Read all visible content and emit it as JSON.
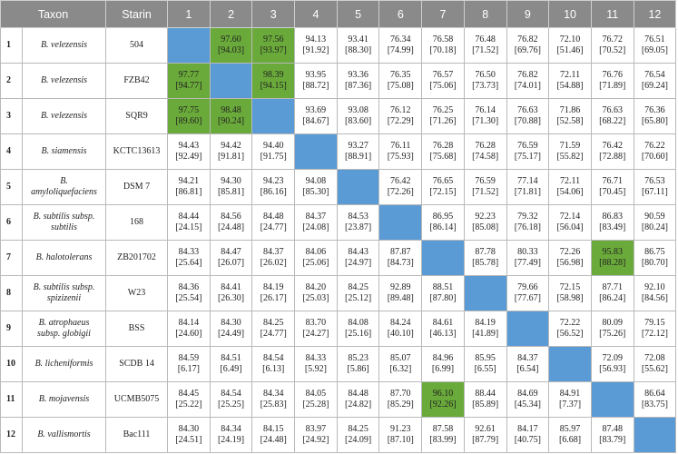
{
  "colors": {
    "header_bg": "#8a8a8a",
    "diagonal": "#5b9bd5",
    "highlight": "#6aaa3a",
    "border": "#b9b9b9"
  },
  "columns": [
    "Taxon",
    "Starin",
    "1",
    "2",
    "3",
    "4",
    "5",
    "6",
    "7",
    "8",
    "9",
    "10",
    "11",
    "12"
  ],
  "rows": [
    {
      "num": "1",
      "taxon": [
        "B. velezensis"
      ],
      "strain": "504",
      "cells": [
        null,
        [
          "97.60",
          "[94.03]"
        ],
        [
          "97.56",
          "[93.97]"
        ],
        [
          "94.13",
          "[91.92]"
        ],
        [
          "93.41",
          "[88.30]"
        ],
        [
          "76.34",
          "[74.99]"
        ],
        [
          "76.58",
          "[70.18]"
        ],
        [
          "76.48",
          "[71.52]"
        ],
        [
          "76.82",
          "[69.76]"
        ],
        [
          "72.10",
          "[51.46]"
        ],
        [
          "76.72",
          "[70.52]"
        ],
        [
          "76.51",
          "[69.05]"
        ]
      ]
    },
    {
      "num": "2",
      "taxon": [
        "B. velezensis"
      ],
      "strain": "FZB42",
      "cells": [
        [
          "97.77",
          "[94.77]"
        ],
        null,
        [
          "98.39",
          "[94.15]"
        ],
        [
          "93.95",
          "[88.72]"
        ],
        [
          "93.36",
          "[87.36]"
        ],
        [
          "76.35",
          "[75.08]"
        ],
        [
          "76.57",
          "[75.06]"
        ],
        [
          "76.50",
          "[73.73]"
        ],
        [
          "76.82",
          "[74.01]"
        ],
        [
          "72.11",
          "[54.88]"
        ],
        [
          "76.76",
          "[71.89]"
        ],
        [
          "76.54",
          "[69.24]"
        ]
      ]
    },
    {
      "num": "3",
      "taxon": [
        "B. velezensis"
      ],
      "strain": "SQR9",
      "cells": [
        [
          "97.75",
          "[89.60]"
        ],
        [
          "98.48",
          "[90.24]"
        ],
        null,
        [
          "93.69",
          "[84.67]"
        ],
        [
          "93.08",
          "[83.60]"
        ],
        [
          "76.12",
          "[72.29]"
        ],
        [
          "76.25",
          "[71.26]"
        ],
        [
          "76.14",
          "[71.30]"
        ],
        [
          "76.63",
          "[70.88]"
        ],
        [
          "71.86",
          "[52.58]"
        ],
        [
          "76.63",
          "[68.22]"
        ],
        [
          "76.36",
          "[65.80]"
        ]
      ]
    },
    {
      "num": "4",
      "taxon": [
        "B. siamensis"
      ],
      "strain": "KCTC13613",
      "cells": [
        [
          "94.43",
          "[92.49]"
        ],
        [
          "94.42",
          "[91.81]"
        ],
        [
          "94.40",
          "[91.75]"
        ],
        null,
        [
          "93.27",
          "[88.91]"
        ],
        [
          "76.11",
          "[75.93]"
        ],
        [
          "76.28",
          "[75.68]"
        ],
        [
          "76.28",
          "[74.58]"
        ],
        [
          "76.59",
          "[75.17]"
        ],
        [
          "71.59",
          "[55.82]"
        ],
        [
          "76.42",
          "[72.88]"
        ],
        [
          "76.22",
          "[70.60]"
        ]
      ]
    },
    {
      "num": "5",
      "taxon": [
        "B.",
        "amyloliquefaciens"
      ],
      "strain": "DSM 7",
      "cells": [
        [
          "94.21",
          "[86.81]"
        ],
        [
          "94.30",
          "[85.81]"
        ],
        [
          "94.23",
          "[86.16]"
        ],
        [
          "94.08",
          "[85.30]"
        ],
        null,
        [
          "76.42",
          "[72.26]"
        ],
        [
          "76.65",
          "[72.15]"
        ],
        [
          "76.59",
          "[71.52]"
        ],
        [
          "77.14",
          "[71.81]"
        ],
        [
          "72.11",
          "[54.06]"
        ],
        [
          "76.71",
          "[70.45]"
        ],
        [
          "76.53",
          "[67.11]"
        ]
      ]
    },
    {
      "num": "6",
      "taxon": [
        "B. subtilis subsp.",
        "subtilis"
      ],
      "strain": "168",
      "cells": [
        [
          "84.44",
          "[24.15]"
        ],
        [
          "84.56",
          "[24.48]"
        ],
        [
          "84.48",
          "[24.77]"
        ],
        [
          "84.37",
          "[24.08]"
        ],
        [
          "84.53",
          "[23.87]"
        ],
        null,
        [
          "86.95",
          "[86.14]"
        ],
        [
          "92.23",
          "[85.08]"
        ],
        [
          "79.32",
          "[76.18]"
        ],
        [
          "72.14",
          "[56.04]"
        ],
        [
          "86.83",
          "[83.49]"
        ],
        [
          "90.59",
          "[80.24]"
        ]
      ]
    },
    {
      "num": "7",
      "taxon": [
        "B. halotolerans"
      ],
      "strain": "ZB201702",
      "cells": [
        [
          "84.33",
          "[25.64]"
        ],
        [
          "84.47",
          "[26.07]"
        ],
        [
          "84.37",
          "[26.02]"
        ],
        [
          "84.06",
          "[25.06]"
        ],
        [
          "84.43",
          "[24.97]"
        ],
        [
          "87.87",
          "[84.73]"
        ],
        null,
        [
          "87.78",
          "[85.78]"
        ],
        [
          "80.33",
          "[77.49]"
        ],
        [
          "72.26",
          "[56.98]"
        ],
        [
          "95.83",
          "[88.28]"
        ],
        [
          "86.75",
          "[80.70]"
        ]
      ]
    },
    {
      "num": "8",
      "taxon": [
        "B. subtilis subsp.",
        "spizizenii"
      ],
      "strain": "W23",
      "cells": [
        [
          "84.36",
          "[25.54]"
        ],
        [
          "84.41",
          "[26.30]"
        ],
        [
          "84.19",
          "[26.17]"
        ],
        [
          "84.20",
          "[25.03]"
        ],
        [
          "84.25",
          "[25.12]"
        ],
        [
          "92.89",
          "[89.48]"
        ],
        [
          "88.51",
          "[87.80]"
        ],
        null,
        [
          "79.66",
          "[77.67]"
        ],
        [
          "72.15",
          "[58.98]"
        ],
        [
          "87.71",
          "[86.24]"
        ],
        [
          "92.10",
          "[84.56]"
        ]
      ]
    },
    {
      "num": "9",
      "taxon": [
        "B. atrophaeus",
        "subsp. globigii"
      ],
      "strain": "BSS",
      "cells": [
        [
          "84.14",
          "[24.60]"
        ],
        [
          "84.30",
          "[24.49]"
        ],
        [
          "84.25",
          "[24.77]"
        ],
        [
          "83.70",
          "[24.27]"
        ],
        [
          "84.08",
          "[25.16]"
        ],
        [
          "84.24",
          "[40.10]"
        ],
        [
          "84.61",
          "[46.13]"
        ],
        [
          "84.19",
          "[41.89]"
        ],
        null,
        [
          "72.22",
          "[56.52]"
        ],
        [
          "80.09",
          "[75.26]"
        ],
        [
          "79.15",
          "[72.12]"
        ]
      ]
    },
    {
      "num": "10",
      "taxon": [
        "B. licheniformis"
      ],
      "strain": "SCDB 14",
      "cells": [
        [
          "84.59",
          "[6.17]"
        ],
        [
          "84.51",
          "[6.49]"
        ],
        [
          "84.54",
          "[6.13]"
        ],
        [
          "84.33",
          "[5.92]"
        ],
        [
          "85.23",
          "[5.86]"
        ],
        [
          "85.07",
          "[6.32]"
        ],
        [
          "84.96",
          "[6.99]"
        ],
        [
          "85.95",
          "[6.55]"
        ],
        [
          "84.37",
          "[6.54]"
        ],
        null,
        [
          "72.09",
          "[56.93]"
        ],
        [
          "72.08",
          "[55.62]"
        ]
      ]
    },
    {
      "num": "11",
      "taxon": [
        "B. mojavensis"
      ],
      "strain": "UCMB5075",
      "cells": [
        [
          "84.45",
          "[25.22]"
        ],
        [
          "84.54",
          "[25.25]"
        ],
        [
          "84.34",
          "[25.83]"
        ],
        [
          "84.05",
          "[25.28]"
        ],
        [
          "84.48",
          "[24.82]"
        ],
        [
          "87.70",
          "[85.29]"
        ],
        [
          "96.10",
          "[92.26]"
        ],
        [
          "88.44",
          "[85.89]"
        ],
        [
          "84.69",
          "[45.34]"
        ],
        [
          "84.91",
          "[7.37]"
        ],
        null,
        [
          "86.64",
          "[83.75]"
        ]
      ]
    },
    {
      "num": "12",
      "taxon": [
        "B. vallismortis"
      ],
      "strain": "Bac111",
      "cells": [
        [
          "84.30",
          "[24.51]"
        ],
        [
          "84.34",
          "[24.19]"
        ],
        [
          "84.15",
          "[24.48]"
        ],
        [
          "83.97",
          "[24.92]"
        ],
        [
          "84.25",
          "[24.09]"
        ],
        [
          "91.23",
          "[87.10]"
        ],
        [
          "87.58",
          "[83.99]"
        ],
        [
          "92.61",
          "[87.79]"
        ],
        [
          "84.17",
          "[40.75]"
        ],
        [
          "85.97",
          "[6.68]"
        ],
        [
          "87.48",
          "[83.79]"
        ],
        null
      ]
    }
  ],
  "highlights": [
    [
      0,
      1
    ],
    [
      0,
      2
    ],
    [
      1,
      0
    ],
    [
      1,
      2
    ],
    [
      2,
      0
    ],
    [
      2,
      1
    ],
    [
      6,
      10
    ],
    [
      10,
      6
    ]
  ]
}
